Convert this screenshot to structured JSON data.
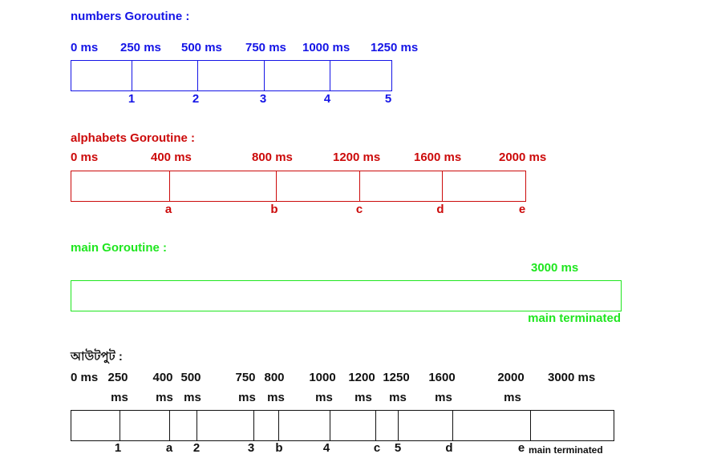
{
  "numbers": {
    "title": "numbers  Goroutine :",
    "times": [
      "0 ms",
      "250 ms",
      "500 ms",
      "750 ms",
      "1000 ms",
      "1250 ms"
    ],
    "outputs": [
      "1",
      "2",
      "3",
      "4",
      "5"
    ],
    "color": "#1414e6"
  },
  "alphabets": {
    "title": "alphabets Goroutine :",
    "times": [
      "0 ms",
      "400 ms",
      "800 ms",
      "1200 ms",
      "1600 ms",
      "2000 ms"
    ],
    "outputs": [
      "a",
      "b",
      "c",
      "d",
      "e"
    ],
    "color": "#cc0a0a"
  },
  "main": {
    "title": "main  Goroutine :",
    "time": "3000 ms",
    "end_label": "main terminated",
    "color": "#1fe61f"
  },
  "output": {
    "title": "আউটপুট :",
    "start": "0 ms",
    "times": [
      "250",
      "400",
      "500",
      "750",
      "800",
      "1000",
      "1200",
      "1250",
      "1600",
      "2000"
    ],
    "unit": "ms",
    "end_time": "3000 ms",
    "outputs": [
      "1",
      "a",
      "2",
      "3",
      "b",
      "4",
      "c",
      "5",
      "d",
      "e"
    ],
    "end_label": "main terminated"
  }
}
